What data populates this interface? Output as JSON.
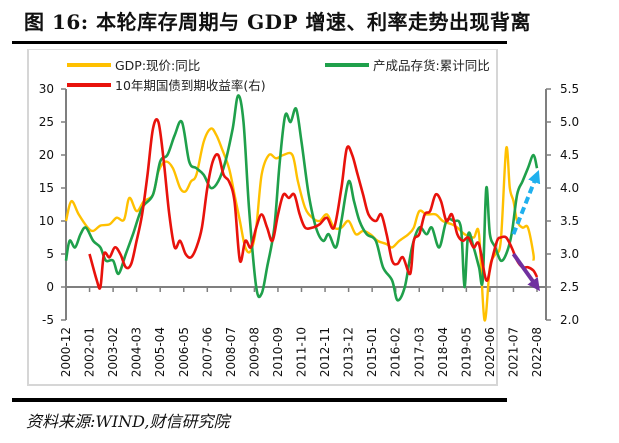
{
  "figure": {
    "title": "图 16:  本轮库存周期与 GDP 增速、利率走势出现背离",
    "source": "资料来源:WIND,财信研究院"
  },
  "chart_data": {
    "type": "line",
    "title": "本轮库存周期与 GDP 增速、利率走势出现背离",
    "xlabel": "",
    "ylabel_left": "",
    "ylabel_right": "",
    "x_tick_labels": [
      "2000-12",
      "2002-01",
      "2003-02",
      "2004-03",
      "2005-04",
      "2006-05",
      "2007-06",
      "2008-07",
      "2009-08",
      "2010-09",
      "2011-10",
      "2012-11",
      "2013-12",
      "2015-01",
      "2016-02",
      "2017-03",
      "2018-04",
      "2019-05",
      "2020-06",
      "2021-07",
      "2022-08"
    ],
    "x_range": [
      "2000-12",
      "2022-08"
    ],
    "y_left": {
      "range": [
        -5,
        30
      ],
      "ticks": [
        -5,
        0,
        5,
        10,
        15,
        20,
        25,
        30
      ]
    },
    "y_right": {
      "range": [
        2.0,
        5.5
      ],
      "ticks": [
        "2.0",
        "2.5",
        "3.0",
        "3.5",
        "4.0",
        "4.5",
        "5.0",
        "5.5"
      ]
    },
    "grid": false,
    "legend_placement": "top",
    "series": [
      {
        "name": "GDP:现价:同比",
        "axis": "left",
        "color": "#FFC000",
        "points": [
          [
            "2000-12",
            10
          ],
          [
            "2001-03",
            13
          ],
          [
            "2001-07",
            11
          ],
          [
            "2001-12",
            9
          ],
          [
            "2002-03",
            8.5
          ],
          [
            "2002-07",
            9.3
          ],
          [
            "2002-12",
            9.5
          ],
          [
            "2003-04",
            10.5
          ],
          [
            "2003-08",
            10.2
          ],
          [
            "2003-11",
            13.5
          ],
          [
            "2004-03",
            11.5
          ],
          [
            "2004-07",
            13
          ],
          [
            "2004-12",
            14
          ],
          [
            "2005-03",
            17.5
          ],
          [
            "2005-07",
            19
          ],
          [
            "2005-11",
            18
          ],
          [
            "2006-03",
            15
          ],
          [
            "2006-06",
            14.5
          ],
          [
            "2006-09",
            16
          ],
          [
            "2006-12",
            17
          ],
          [
            "2007-04",
            22
          ],
          [
            "2007-08",
            24
          ],
          [
            "2007-11",
            23
          ],
          [
            "2008-02",
            21
          ],
          [
            "2008-06",
            18
          ],
          [
            "2008-09",
            14
          ],
          [
            "2008-12",
            10
          ],
          [
            "2009-03",
            6
          ],
          [
            "2009-06",
            5.5
          ],
          [
            "2009-09",
            9
          ],
          [
            "2009-12",
            17
          ],
          [
            "2010-04",
            20
          ],
          [
            "2010-08",
            19.5
          ],
          [
            "2010-12",
            20
          ],
          [
            "2011-05",
            20
          ],
          [
            "2011-08",
            16
          ],
          [
            "2011-12",
            12
          ],
          [
            "2012-04",
            10.5
          ],
          [
            "2012-08",
            10
          ],
          [
            "2012-12",
            11
          ],
          [
            "2013-04",
            9
          ],
          [
            "2013-08",
            9
          ],
          [
            "2013-12",
            10
          ],
          [
            "2014-04",
            8
          ],
          [
            "2014-08",
            8.5
          ],
          [
            "2014-12",
            8
          ],
          [
            "2015-04",
            7
          ],
          [
            "2015-09",
            6.5
          ],
          [
            "2015-12",
            6
          ],
          [
            "2016-04",
            7
          ],
          [
            "2016-09",
            8
          ],
          [
            "2016-12",
            9
          ],
          [
            "2017-03",
            11.5
          ],
          [
            "2017-07",
            11
          ],
          [
            "2017-12",
            11
          ],
          [
            "2018-04",
            10
          ],
          [
            "2018-09",
            9.5
          ],
          [
            "2018-12",
            9
          ],
          [
            "2019-04",
            8
          ],
          [
            "2019-09",
            7.5
          ],
          [
            "2019-12",
            8
          ],
          [
            "2020-03",
            -5
          ],
          [
            "2020-06",
            3
          ],
          [
            "2020-09",
            5
          ],
          [
            "2020-12",
            7
          ],
          [
            "2021-03",
            21
          ],
          [
            "2021-05",
            15
          ],
          [
            "2021-07",
            13
          ],
          [
            "2021-09",
            10
          ],
          [
            "2021-12",
            9
          ],
          [
            "2022-03",
            9
          ],
          [
            "2022-06",
            5
          ],
          [
            "2022-06",
            4
          ]
        ]
      },
      {
        "name": "产成品存货:累计同比",
        "axis": "left",
        "color": "#1FA04B",
        "points": [
          [
            "2000-12",
            4
          ],
          [
            "2001-02",
            7
          ],
          [
            "2001-05",
            6
          ],
          [
            "2001-08",
            8
          ],
          [
            "2001-11",
            9
          ],
          [
            "2002-03",
            7
          ],
          [
            "2002-07",
            6
          ],
          [
            "2002-10",
            4
          ],
          [
            "2003-02",
            4
          ],
          [
            "2003-05",
            2
          ],
          [
            "2003-09",
            5
          ],
          [
            "2004-01",
            8
          ],
          [
            "2004-06",
            12
          ],
          [
            "2004-12",
            14
          ],
          [
            "2005-04",
            19
          ],
          [
            "2005-08",
            20
          ],
          [
            "2005-12",
            23
          ],
          [
            "2006-04",
            25
          ],
          [
            "2006-08",
            19
          ],
          [
            "2006-12",
            18
          ],
          [
            "2007-04",
            17
          ],
          [
            "2007-08",
            15
          ],
          [
            "2007-12",
            16
          ],
          [
            "2008-04",
            19
          ],
          [
            "2008-08",
            24
          ],
          [
            "2008-11",
            29
          ],
          [
            "2009-02",
            25
          ],
          [
            "2009-05",
            12
          ],
          [
            "2009-09",
            0
          ],
          [
            "2009-12",
            -1
          ],
          [
            "2010-03",
            3
          ],
          [
            "2010-07",
            9
          ],
          [
            "2010-10",
            19
          ],
          [
            "2011-01",
            26
          ],
          [
            "2011-04",
            25
          ],
          [
            "2011-07",
            27
          ],
          [
            "2011-10",
            22
          ],
          [
            "2012-02",
            14
          ],
          [
            "2012-06",
            9
          ],
          [
            "2012-10",
            7
          ],
          [
            "2013-01",
            8
          ],
          [
            "2013-05",
            6
          ],
          [
            "2013-08",
            10
          ],
          [
            "2013-12",
            16
          ],
          [
            "2014-03",
            13
          ],
          [
            "2014-06",
            10
          ],
          [
            "2014-10",
            8
          ],
          [
            "2015-03",
            7
          ],
          [
            "2015-07",
            3
          ],
          [
            "2015-12",
            1
          ],
          [
            "2016-03",
            -2
          ],
          [
            "2016-07",
            0
          ],
          [
            "2016-11",
            6
          ],
          [
            "2017-03",
            9
          ],
          [
            "2017-07",
            8
          ],
          [
            "2017-10",
            9
          ],
          [
            "2018-02",
            6
          ],
          [
            "2018-06",
            10
          ],
          [
            "2018-10",
            10
          ],
          [
            "2019-02",
            9
          ],
          [
            "2019-04",
            0
          ],
          [
            "2019-06",
            8
          ],
          [
            "2019-09",
            6
          ],
          [
            "2019-12",
            3
          ],
          [
            "2020-02",
            1
          ],
          [
            "2020-04",
            15
          ],
          [
            "2020-06",
            8
          ],
          [
            "2020-09",
            6
          ],
          [
            "2020-12",
            4
          ],
          [
            "2021-03",
            5
          ],
          [
            "2021-06",
            8
          ],
          [
            "2021-09",
            14
          ],
          [
            "2021-12",
            16
          ],
          [
            "2022-03",
            18
          ],
          [
            "2022-06",
            20
          ],
          [
            "2022-08",
            18
          ]
        ]
      },
      {
        "name": "10年期国债到期收益率(右)",
        "axis": "right",
        "color": "#E8120C",
        "points": [
          [
            "2002-01",
            3.0
          ],
          [
            "2002-05",
            2.6
          ],
          [
            "2002-07",
            2.5
          ],
          [
            "2002-09",
            3.0
          ],
          [
            "2002-12",
            2.95
          ],
          [
            "2003-03",
            3.1
          ],
          [
            "2003-06",
            3.0
          ],
          [
            "2003-09",
            2.8
          ],
          [
            "2003-12",
            2.85
          ],
          [
            "2004-03",
            3.2
          ],
          [
            "2004-06",
            3.6
          ],
          [
            "2004-09",
            4.2
          ],
          [
            "2004-12",
            4.9
          ],
          [
            "2005-03",
            5.0
          ],
          [
            "2005-06",
            4.4
          ],
          [
            "2005-09",
            3.6
          ],
          [
            "2005-12",
            3.1
          ],
          [
            "2006-03",
            3.2
          ],
          [
            "2006-06",
            3.0
          ],
          [
            "2006-09",
            2.95
          ],
          [
            "2006-12",
            3.1
          ],
          [
            "2007-03",
            3.4
          ],
          [
            "2007-06",
            4.0
          ],
          [
            "2007-09",
            4.4
          ],
          [
            "2007-12",
            4.5
          ],
          [
            "2008-03",
            4.2
          ],
          [
            "2008-06",
            4.1
          ],
          [
            "2008-09",
            3.8
          ],
          [
            "2008-12",
            2.9
          ],
          [
            "2009-03",
            3.2
          ],
          [
            "2009-06",
            3.1
          ],
          [
            "2009-09",
            3.4
          ],
          [
            "2009-12",
            3.6
          ],
          [
            "2010-03",
            3.4
          ],
          [
            "2010-06",
            3.2
          ],
          [
            "2010-09",
            3.6
          ],
          [
            "2010-12",
            3.9
          ],
          [
            "2011-03",
            3.85
          ],
          [
            "2011-06",
            3.9
          ],
          [
            "2011-09",
            3.6
          ],
          [
            "2011-12",
            3.4
          ],
          [
            "2012-04",
            3.4
          ],
          [
            "2012-08",
            3.45
          ],
          [
            "2012-12",
            3.55
          ],
          [
            "2013-04",
            3.4
          ],
          [
            "2013-08",
            4.0
          ],
          [
            "2013-11",
            4.6
          ],
          [
            "2014-02",
            4.5
          ],
          [
            "2014-05",
            4.2
          ],
          [
            "2014-08",
            3.9
          ],
          [
            "2014-11",
            3.6
          ],
          [
            "2015-03",
            3.5
          ],
          [
            "2015-06",
            3.6
          ],
          [
            "2015-09",
            3.3
          ],
          [
            "2015-12",
            2.9
          ],
          [
            "2016-03",
            2.85
          ],
          [
            "2016-06",
            2.95
          ],
          [
            "2016-10",
            2.7
          ],
          [
            "2016-12",
            3.2
          ],
          [
            "2017-03",
            3.3
          ],
          [
            "2017-06",
            3.6
          ],
          [
            "2017-09",
            3.65
          ],
          [
            "2017-12",
            3.9
          ],
          [
            "2018-03",
            3.8
          ],
          [
            "2018-06",
            3.5
          ],
          [
            "2018-09",
            3.6
          ],
          [
            "2018-12",
            3.3
          ],
          [
            "2019-03",
            3.2
          ],
          [
            "2019-06",
            3.25
          ],
          [
            "2019-09",
            3.1
          ],
          [
            "2019-12",
            3.15
          ],
          [
            "2020-04",
            2.6
          ],
          [
            "2020-07",
            2.9
          ],
          [
            "2020-10",
            3.2
          ],
          [
            "2020-12",
            3.25
          ],
          [
            "2021-03",
            3.25
          ],
          [
            "2021-06",
            3.1
          ],
          [
            "2021-09",
            2.9
          ],
          [
            "2021-12",
            2.8
          ],
          [
            "2022-03",
            2.8
          ],
          [
            "2022-06",
            2.75
          ],
          [
            "2022-08",
            2.65
          ]
        ]
      }
    ],
    "annotations": [
      {
        "type": "arrow",
        "style": "dashed",
        "color": "#1FB0EE",
        "meaning": "inventory trend rising",
        "from": [
          "2021-07",
          8
        ],
        "to": [
          "2022-08",
          17
        ]
      },
      {
        "type": "arrow",
        "style": "solid",
        "color": "#7030A0",
        "meaning": "GDP/rate trend falling",
        "from": [
          "2021-07",
          5
        ],
        "to": [
          "2022-08",
          0
        ]
      }
    ]
  }
}
